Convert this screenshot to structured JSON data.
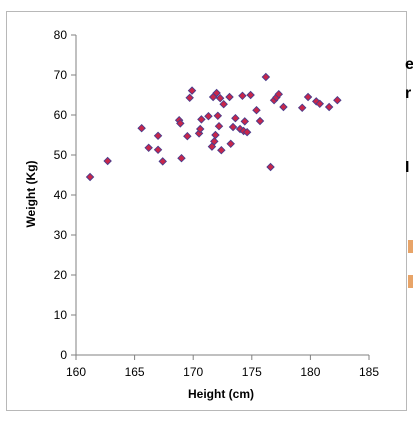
{
  "colors": {
    "marker_fill": "#c8264a",
    "marker_edge": "#4a3d8c",
    "axis": "#808080",
    "tick_text": "#000000",
    "frame_border": "#b8b8b8",
    "side_accent": "#e8a468"
  },
  "side_panel": {
    "fragments": [
      "e",
      "r",
      "I"
    ]
  },
  "chart_data": {
    "type": "scatter",
    "title": "",
    "xlabel": "Height (cm)",
    "ylabel": "Weight (Kg)",
    "xlim": [
      160,
      185
    ],
    "ylim": [
      0,
      80
    ],
    "xticks": [
      160,
      165,
      170,
      175,
      180,
      185
    ],
    "yticks": [
      0,
      10,
      20,
      30,
      40,
      50,
      60,
      70,
      80
    ],
    "grid": false,
    "legend": "none",
    "marker": "diamond",
    "series": [
      {
        "points": [
          [
            161.2,
            44.5
          ],
          [
            162.7,
            48.5
          ],
          [
            165.6,
            56.7
          ],
          [
            166.2,
            51.8
          ],
          [
            167.0,
            51.3
          ],
          [
            167.0,
            54.8
          ],
          [
            167.4,
            48.4
          ],
          [
            168.8,
            58.7
          ],
          [
            168.9,
            57.9
          ],
          [
            169.0,
            49.2
          ],
          [
            169.5,
            54.7
          ],
          [
            169.7,
            64.3
          ],
          [
            169.9,
            66.1
          ],
          [
            170.5,
            55.4
          ],
          [
            170.6,
            56.5
          ],
          [
            170.7,
            58.9
          ],
          [
            171.3,
            59.7
          ],
          [
            171.6,
            52.1
          ],
          [
            171.7,
            64.5
          ],
          [
            171.8,
            53.4
          ],
          [
            171.9,
            55.0
          ],
          [
            172.0,
            65.5
          ],
          [
            172.1,
            59.8
          ],
          [
            172.2,
            57.2
          ],
          [
            172.3,
            64.2
          ],
          [
            172.4,
            51.2
          ],
          [
            172.6,
            62.7
          ],
          [
            173.1,
            64.5
          ],
          [
            173.2,
            52.8
          ],
          [
            173.4,
            57.0
          ],
          [
            173.6,
            59.2
          ],
          [
            174.0,
            56.5
          ],
          [
            174.2,
            64.8
          ],
          [
            174.3,
            56.0
          ],
          [
            174.4,
            58.4
          ],
          [
            174.6,
            55.7
          ],
          [
            174.9,
            65.0
          ],
          [
            175.4,
            61.2
          ],
          [
            175.7,
            58.5
          ],
          [
            176.2,
            69.5
          ],
          [
            176.6,
            47.0
          ],
          [
            176.9,
            63.7
          ],
          [
            177.1,
            64.4
          ],
          [
            177.3,
            65.2
          ],
          [
            177.7,
            62.0
          ],
          [
            179.3,
            61.8
          ],
          [
            179.8,
            64.5
          ],
          [
            180.5,
            63.4
          ],
          [
            180.8,
            62.8
          ],
          [
            181.6,
            62.0
          ],
          [
            182.3,
            63.7
          ]
        ]
      }
    ]
  }
}
